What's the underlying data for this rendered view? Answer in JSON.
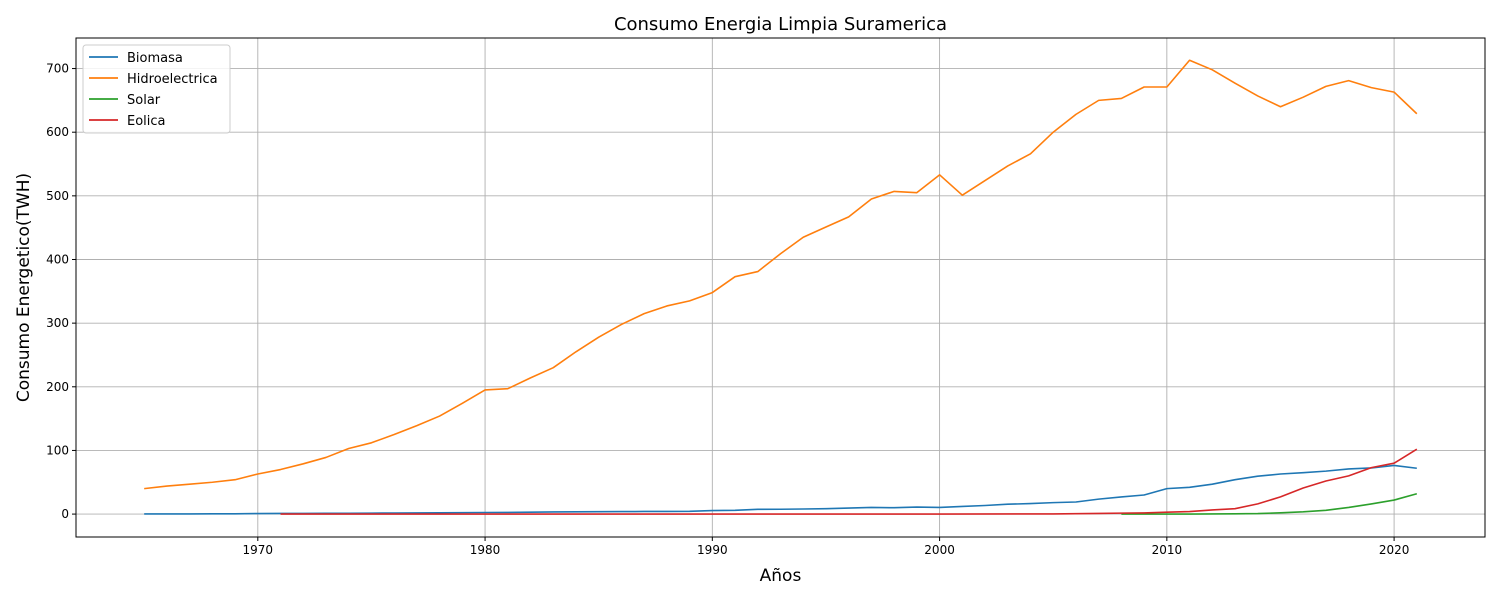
{
  "chart_data": {
    "type": "line",
    "title": "Consumo  Energia Limpia Suramerica",
    "xlabel": "Años",
    "ylabel": "Consumo Energetico(TWH)",
    "xlim": [
      1962,
      2024
    ],
    "ylim": [
      -36,
      748
    ],
    "xticks": [
      1970,
      1980,
      1990,
      2000,
      2010,
      2020
    ],
    "yticks": [
      0,
      100,
      200,
      300,
      400,
      500,
      600,
      700
    ],
    "grid": true,
    "legend_position": "upper-left",
    "series": [
      {
        "name": "Biomasa",
        "color": "#1f77b4",
        "x": [
          1965,
          1966,
          1967,
          1968,
          1969,
          1970,
          1971,
          1972,
          1973,
          1974,
          1975,
          1976,
          1977,
          1978,
          1979,
          1980,
          1981,
          1982,
          1983,
          1984,
          1985,
          1986,
          1987,
          1988,
          1989,
          1990,
          1991,
          1992,
          1993,
          1994,
          1995,
          1996,
          1997,
          1998,
          1999,
          2000,
          2001,
          2002,
          2003,
          2004,
          2005,
          2006,
          2007,
          2008,
          2009,
          2010,
          2011,
          2012,
          2013,
          2014,
          2015,
          2016,
          2017,
          2018,
          2019,
          2020,
          2021
        ],
        "values": [
          0.2,
          0.3,
          0.3,
          0.4,
          0.5,
          0.8,
          1.0,
          1.1,
          1.2,
          1.3,
          1.5,
          1.7,
          1.9,
          2.1,
          2.3,
          2.5,
          2.6,
          3.0,
          3.4,
          3.5,
          3.7,
          3.9,
          4.1,
          4.2,
          4.4,
          5.5,
          6.0,
          7.5,
          7.6,
          8.0,
          8.5,
          9.5,
          10.5,
          10.0,
          11.0,
          10.5,
          12.0,
          13.5,
          15.5,
          16.5,
          18.0,
          19.0,
          23.5,
          27.0,
          30.0,
          40.0,
          42.0,
          47.0,
          54.0,
          59.5,
          63.0,
          65.0,
          67.5,
          71.0,
          72.5,
          76.5,
          72.0
        ]
      },
      {
        "name": "Hidroelectrica",
        "color": "#ff7f0e",
        "x": [
          1965,
          1966,
          1967,
          1968,
          1969,
          1970,
          1971,
          1972,
          1973,
          1974,
          1975,
          1976,
          1977,
          1978,
          1979,
          1980,
          1981,
          1982,
          1983,
          1984,
          1985,
          1986,
          1987,
          1988,
          1989,
          1990,
          1991,
          1992,
          1993,
          1994,
          1995,
          1996,
          1997,
          1998,
          1999,
          2000,
          2001,
          2002,
          2003,
          2004,
          2005,
          2006,
          2007,
          2008,
          2009,
          2010,
          2011,
          2012,
          2013,
          2014,
          2015,
          2016,
          2017,
          2018,
          2019,
          2020,
          2021
        ],
        "values": [
          40,
          44,
          47,
          50,
          54,
          63,
          70,
          79,
          89,
          103,
          112,
          125,
          139,
          154,
          174,
          195,
          197,
          214,
          230,
          255,
          278,
          298,
          315,
          327,
          335,
          348,
          373,
          381,
          409,
          435,
          451,
          467,
          495,
          507,
          505,
          533,
          501,
          524,
          547,
          566,
          600,
          628,
          650,
          653,
          671,
          671,
          713,
          698,
          677,
          657,
          640,
          655,
          672,
          681,
          670,
          663,
          629
        ]
      },
      {
        "name": "Solar",
        "color": "#2ca02c",
        "x": [
          2008,
          2009,
          2010,
          2011,
          2012,
          2013,
          2014,
          2015,
          2016,
          2017,
          2018,
          2019,
          2020,
          2021
        ],
        "values": [
          0,
          0,
          0.1,
          0.1,
          0.2,
          0.4,
          0.8,
          2.0,
          3.5,
          6.0,
          10.5,
          16.0,
          22.0,
          32.0
        ]
      },
      {
        "name": "Eolica",
        "color": "#d62728",
        "x": [
          1971,
          1980,
          1990,
          2000,
          2005,
          2006,
          2007,
          2008,
          2009,
          2010,
          2011,
          2012,
          2013,
          2014,
          2015,
          2016,
          2017,
          2018,
          2019,
          2020,
          2021
        ],
        "values": [
          0,
          0,
          0,
          0,
          0.3,
          0.6,
          1.0,
          1.5,
          1.8,
          3.0,
          4.0,
          6.5,
          8.5,
          16.0,
          27.0,
          41.0,
          52.0,
          60.0,
          73.0,
          80.0,
          102.0
        ]
      }
    ]
  }
}
